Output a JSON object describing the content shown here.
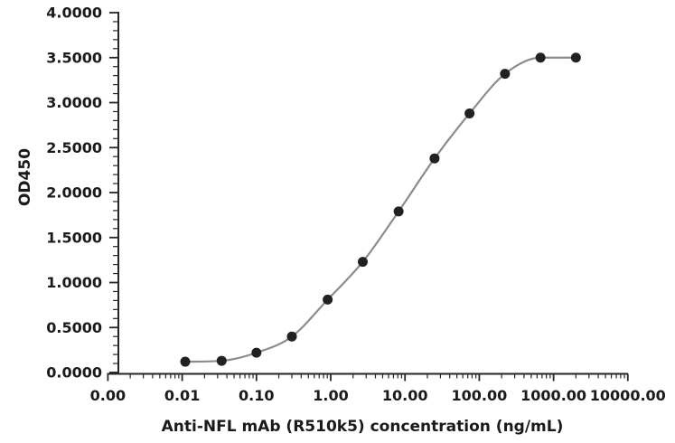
{
  "figure": {
    "background": "#ffffff",
    "text_color": "#1a1a1a",
    "axis_color": "#262626",
    "curve_color": "#8c8c8c",
    "marker_color": "#212121"
  },
  "chart_data": {
    "type": "scatter",
    "subtype": "dose-response-curve-with-fit",
    "title": "",
    "xlabel": "Anti-NFL mAb (R510k5) concentration (ng/mL)",
    "ylabel": "OD450",
    "x_scale": "log10",
    "x_ticks": [
      {
        "value": 0.001,
        "label": "0.00"
      },
      {
        "value": 0.01,
        "label": "0.01"
      },
      {
        "value": 0.1,
        "label": "0.10"
      },
      {
        "value": 1,
        "label": "1.00"
      },
      {
        "value": 10,
        "label": "10.00"
      },
      {
        "value": 100,
        "label": "100.00"
      },
      {
        "value": 1000,
        "label": "1000.00"
      },
      {
        "value": 10000,
        "label": "10000.00"
      }
    ],
    "x_minor_ticks": "log positions 2-9 within each decade",
    "y_ticks": [
      {
        "value": 0.0,
        "label": "0.0000"
      },
      {
        "value": 0.5,
        "label": "0.5000"
      },
      {
        "value": 1.0,
        "label": "1.0000"
      },
      {
        "value": 1.5,
        "label": "1.5000"
      },
      {
        "value": 2.0,
        "label": "2.0000"
      },
      {
        "value": 2.5,
        "label": "2.5000"
      },
      {
        "value": 3.0,
        "label": "3.0000"
      },
      {
        "value": 3.5,
        "label": "3.5000"
      },
      {
        "value": 4.0,
        "label": "4.0000"
      }
    ],
    "y_minor_step": 0.1,
    "ylim": [
      0,
      4
    ],
    "xlim": [
      0.001,
      10000
    ],
    "grid": false,
    "legend": "none",
    "series": [
      {
        "x": [
          0.011,
          0.034,
          0.1,
          0.3,
          0.91,
          2.7,
          8.2,
          25,
          74,
          222,
          667,
          2000
        ],
        "y": [
          0.12,
          0.13,
          0.22,
          0.4,
          0.81,
          1.23,
          1.79,
          2.38,
          2.88,
          3.32,
          3.5,
          3.5
        ]
      }
    ]
  }
}
